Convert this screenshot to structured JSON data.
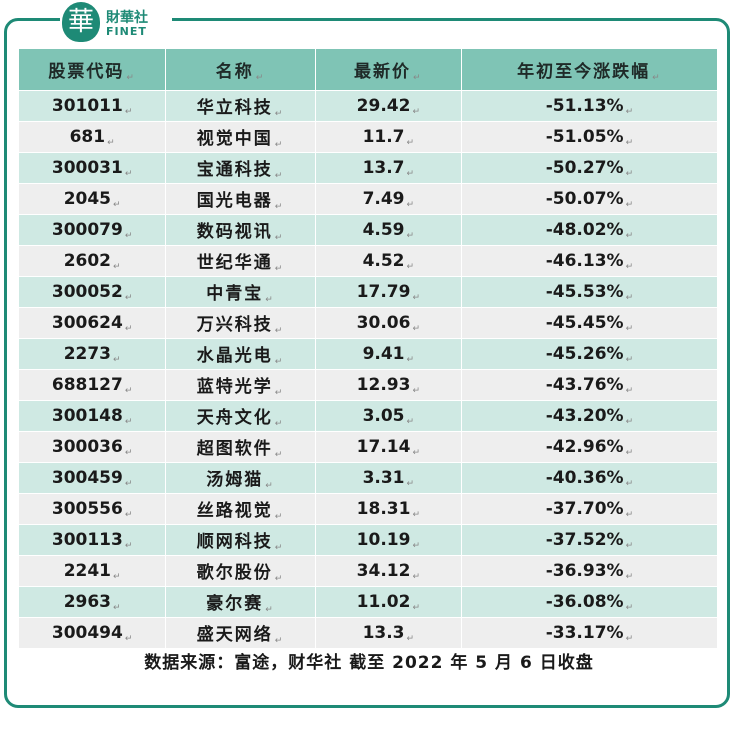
{
  "logo": {
    "glyph": "華",
    "name_cn": "財華社",
    "name_en": "FINET"
  },
  "watermark": {
    "cn": "財華社",
    "en": "FINET"
  },
  "table": {
    "headers": [
      "股票代码",
      "名称",
      "最新价",
      "年初至今涨跌幅"
    ],
    "rows": [
      {
        "code": "301011",
        "name": "华立科技",
        "price": "29.42",
        "change": "-51.13%"
      },
      {
        "code": "681",
        "name": "视觉中国",
        "price": "11.7",
        "change": "-51.05%"
      },
      {
        "code": "300031",
        "name": "宝通科技",
        "price": "13.7",
        "change": "-50.27%"
      },
      {
        "code": "2045",
        "name": "国光电器",
        "price": "7.49",
        "change": "-50.07%"
      },
      {
        "code": "300079",
        "name": "数码视讯",
        "price": "4.59",
        "change": "-48.02%"
      },
      {
        "code": "2602",
        "name": "世纪华通",
        "price": "4.52",
        "change": "-46.13%"
      },
      {
        "code": "300052",
        "name": "中青宝",
        "price": "17.79",
        "change": "-45.53%"
      },
      {
        "code": "300624",
        "name": "万兴科技",
        "price": "30.06",
        "change": "-45.45%"
      },
      {
        "code": "2273",
        "name": "水晶光电",
        "price": "9.41",
        "change": "-45.26%"
      },
      {
        "code": "688127",
        "name": "蓝特光学",
        "price": "12.93",
        "change": "-43.76%"
      },
      {
        "code": "300148",
        "name": "天舟文化",
        "price": "3.05",
        "change": "-43.20%"
      },
      {
        "code": "300036",
        "name": "超图软件",
        "price": "17.14",
        "change": "-42.96%"
      },
      {
        "code": "300459",
        "name": "汤姆猫",
        "price": "3.31",
        "change": "-40.36%"
      },
      {
        "code": "300556",
        "name": "丝路视觉",
        "price": "18.31",
        "change": "-37.70%"
      },
      {
        "code": "300113",
        "name": "顺网科技",
        "price": "10.19",
        "change": "-37.52%"
      },
      {
        "code": "2241",
        "name": "歌尔股份",
        "price": "34.12",
        "change": "-36.93%"
      },
      {
        "code": "2963",
        "name": "豪尔赛",
        "price": "11.02",
        "change": "-36.08%"
      },
      {
        "code": "300494",
        "name": "盛天网络",
        "price": "13.3",
        "change": "-33.17%"
      }
    ]
  },
  "source": "数据来源：富途，财华社 截至 2022 年 5 月 6 日收盘",
  "colors": {
    "accent": "#1e8a76",
    "header_bg": "#7fc4b5",
    "row_odd": "#cfe9e3",
    "row_even": "#eeeeee"
  }
}
